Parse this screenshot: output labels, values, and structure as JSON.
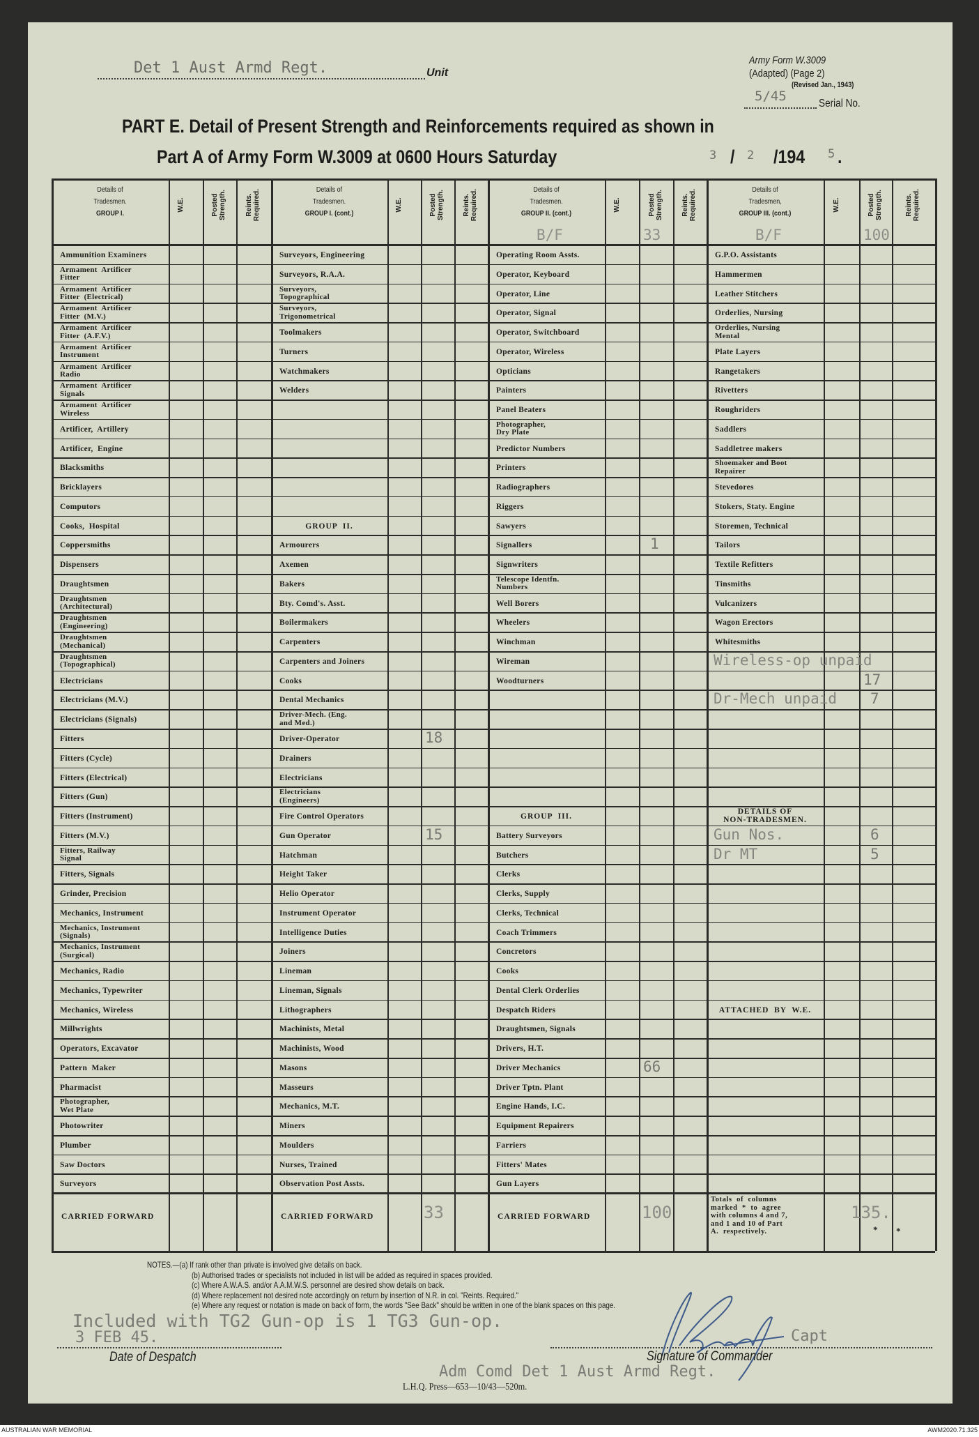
{
  "form": {
    "unit_value": "Det 1 Aust Armd Regt.",
    "unit_label": "Unit",
    "form_name": "Army Form W.3009",
    "adapted": "(Adapted) (Page 2)",
    "revised": "(Revised Jan., 1943)",
    "serial_value": "5/45",
    "serial_label": "Serial No.",
    "title_line1": "PART E.  Detail of Present Strength and Reinforcements required as shown in",
    "title_line2": "Part A of Army Form W.3009 at 0600 Hours Saturday",
    "date_day": "3",
    "date_sep": "/",
    "date_month": "2",
    "date_year_printed": "/194",
    "date_year_typed": "5",
    "date_end": "."
  },
  "table": {
    "col_headers": {
      "we": "W.E.",
      "posted": "Posted Strength.",
      "reints": "Reints. Required."
    },
    "columns": [
      {
        "header": [
          "Details of",
          "Tradesmen.",
          "GROUP I."
        ],
        "rows": [
          "Ammunition Examiners",
          "Armament  Artificer\nFitter",
          "Armament  Artificer\nFitter  (Electrical)",
          "Armament  Artificer\nFitter  (M.V.)",
          "Armament  Artificer\nFitter  (A.F.V.)",
          "Armament  Artificer\nInstrument",
          "Armament  Artificer\nRadio",
          "Armament  Artificer\nSignals",
          "Armament  Artificer\nWireless",
          "Artificer,  Artillery",
          "Artificer,  Engine",
          "Blacksmiths",
          "Bricklayers",
          "Computors",
          "Cooks,  Hospital",
          "Coppersmiths",
          "Dispensers",
          "Draughtsmen",
          "Draughtsmen\n(Architectural)",
          "Draughtsmen\n(Engineering)",
          "Draughtsmen\n(Mechanical)",
          "Draughtsmen\n(Topographical)",
          "Electricians",
          "Electricians (M.V.)",
          "Electricians (Signals)",
          "Fitters",
          "Fitters (Cycle)",
          "Fitters (Electrical)",
          "Fitters (Gun)",
          "Fitters (Instrument)",
          "Fitters (M.V.)",
          "Fitters, Railway\nSignal",
          "Fitters, Signals",
          "Grinder, Precision",
          "Mechanics, Instrument",
          "Mechanics, Instrument\n(Signals)",
          "Mechanics, Instrument\n(Surgical)",
          "Mechanics, Radio",
          "Mechanics, Typewriter",
          "Mechanics, Wireless",
          "Millwrights",
          "Operators, Excavator",
          "Pattern  Maker",
          "Pharmacist",
          "Photographer,\nWet Plate",
          "Photowriter",
          "Plumber",
          "Saw Doctors",
          "Surveyors"
        ],
        "carried_forward": {
          "label": "CARRIED FORWARD"
        }
      },
      {
        "header": [
          "Details of",
          "Tradesmen.",
          "GROUP I. (cont.)"
        ],
        "rows": [
          "Surveyors, Engineering",
          "Surveyors, R.A.A.",
          "Surveyors,\nTopographical",
          "Surveyors,\nTrigonometrical",
          "Toolmakers",
          "Turners",
          "Watchmakers",
          "Welders",
          "",
          "",
          "",
          "",
          "",
          "",
          {
            "heading": "GROUP  II."
          },
          "Armourers",
          "Axemen",
          "Bakers",
          "Bty. Comd's. Asst.",
          "Boilermakers",
          "Carpenters",
          "Carpenters and Joiners",
          "Cooks",
          "Dental Mechanics",
          "Driver-Mech. (Eng.\nand Med.)",
          {
            "label": "Driver-Operator",
            "posted": "18"
          },
          "Drainers",
          "Electricians",
          "Electricians\n(Engineers)",
          "Fire Control Operators",
          {
            "label": "Gun Operator",
            "posted": "15"
          },
          "Hatchman",
          "Height Taker",
          "Helio Operator",
          "Instrument Operator",
          "Intelligence Duties",
          "Joiners",
          "Lineman",
          "Lineman, Signals",
          "Lithographers",
          "Machinists, Metal",
          "Machinists, Wood",
          "Masons",
          "Masseurs",
          "Mechanics, M.T.",
          "Miners",
          "Moulders",
          "Nurses, Trained",
          "Observation Post Assts."
        ],
        "carried_forward": {
          "label": "CARRIED FORWARD",
          "posted": "33"
        }
      },
      {
        "header": [
          "Details of",
          "Tradesmen.",
          "GROUP II. (cont.)"
        ],
        "bf": {
          "label": "B/F",
          "posted": "33"
        },
        "rows": [
          "Operating Room Assts.",
          "Operator, Keyboard",
          "Operator, Line",
          "Operator, Signal",
          "Operator, Switchboard",
          "Operator, Wireless",
          "Opticians",
          "Painters",
          "Panel Beaters",
          "Photographer,\nDry Plate",
          "Predictor Numbers",
          "Printers",
          "Radiographers",
          "Riggers",
          "Sawyers",
          {
            "label": "Signallers",
            "posted": "1"
          },
          "Signwriters",
          "Telescope Identfn.\nNumbers",
          "Well Borers",
          "Wheelers",
          "Winchman",
          "Wireman",
          "Woodturners",
          "",
          "",
          "",
          "",
          "",
          "",
          {
            "heading": "GROUP  III."
          },
          "Battery Surveyors",
          "Butchers",
          "Clerks",
          "Clerks, Supply",
          "Clerks, Technical",
          "Coach Trimmers",
          "Concretors",
          "Cooks",
          "Dental Clerk Orderlies",
          "Despatch Riders",
          "Draughtsmen, Signals",
          "Drivers, H.T.",
          {
            "label": "Driver Mechanics",
            "posted": "66"
          },
          "Driver Tptn. Plant",
          "Engine Hands, I.C.",
          "Equipment Repairers",
          "Farriers",
          "Fitters' Mates",
          "Gun Layers"
        ],
        "carried_forward": {
          "label": "CARRIED FORWARD",
          "posted": "100"
        }
      },
      {
        "header": [
          "Details of",
          "Tradesmen,",
          "GROUP III. (cont.)"
        ],
        "bf": {
          "label": "B/F",
          "posted": "100"
        },
        "rows": [
          "G.P.O. Assistants",
          "Hammermen",
          "Leather Stitchers",
          "Orderlies, Nursing",
          "Orderlies, Nursing\nMental",
          "Plate Layers",
          "Rangetakers",
          "Rivetters",
          "Roughriders",
          "Saddlers",
          "Saddletree makers",
          "Shoemaker and Boot\nRepairer",
          "Stevedores",
          "Stokers, Staty. Engine",
          "Storemen, Technical",
          "Tailors",
          "Textile Refitters",
          "Tinsmiths",
          "Vulcanizers",
          "Wagon Erectors",
          "Whitesmiths",
          {
            "typed": "Wireless-op unpaid"
          },
          {
            "posted": "17"
          },
          {
            "typed": "Dr-Mech unpaid",
            "posted": "7"
          },
          "",
          "",
          "",
          "",
          "",
          {
            "heading": "DETAILS OF\nNON-TRADESMEN."
          },
          {
            "typed": "Gun Nos.",
            "posted": "6"
          },
          {
            "typed": "Dr MT",
            "posted": "5"
          },
          "",
          "",
          "",
          "",
          "",
          "",
          "",
          {
            "heading": "ATTACHED  BY  W.E."
          },
          "",
          "",
          "",
          "",
          "",
          "",
          "",
          "",
          ""
        ],
        "carried_forward": {
          "note": "Totals  of  columns\nmarked  *  to  agree\nwith columns 4 and 7,\nand 1 and 10 of Part\nA.  respectively.",
          "posted": "135.",
          "asterisk": "*"
        }
      }
    ]
  },
  "notes": [
    "NOTES.—(a) If rank other than private is involved give details on back.",
    "(b) Authorised trades or specialists not included in list will be added as required in spaces provided.",
    "(c) Where A.W.A.S. and/or A.A.M.W.S. personnel are desired show details on back.",
    "(d) Where replacement not desired note accordingly on return by insertion of N.R. in col. \"Reints. Required.\"",
    "(e) Where any request or notation is made on back of form, the words \"See Back\" should be written in one of the blank spaces on this page."
  ],
  "footer": {
    "typed_remark": "Included with TG2 Gun-op is 1 TG3 Gun-op.",
    "despatch_date": "3 FEB  45.",
    "despatch_label": "Date of Despatch",
    "rank": "Capt",
    "signature_label": "Signature of Commander",
    "signature_title": "Adm Comd Det 1 Aust Armd Regt.",
    "press": "L.H.Q. Press—653—10/43—520m.",
    "archive_left": "AUSTRALIAN WAR MEMORIAL",
    "archive_right": "AWM2020.71.325",
    "signature_color": "#3d5a8a"
  }
}
